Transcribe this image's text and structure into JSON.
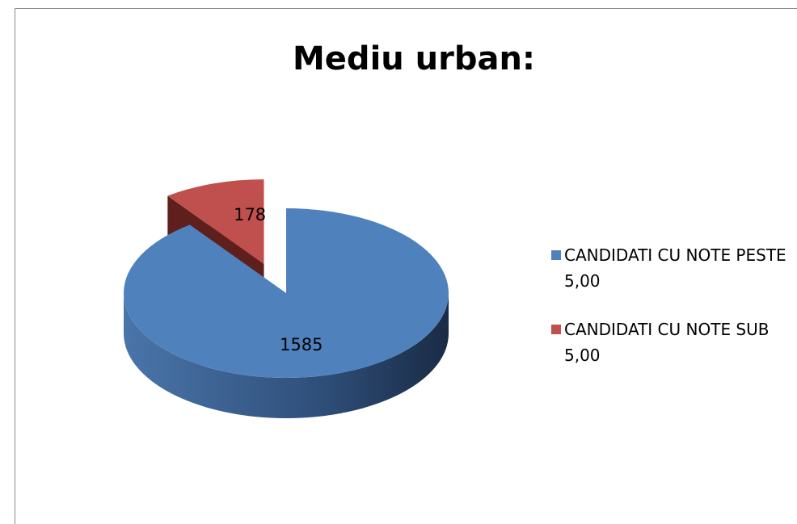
{
  "chart_data": {
    "type": "pie",
    "title": "Mediu urban:",
    "categories": [
      "CANDIDATI CU NOTE PESTE 5,00",
      "CANDIDATI CU NOTE SUB 5,00"
    ],
    "values": [
      1585,
      178
    ],
    "colors": [
      "#4f81bd",
      "#c0504d"
    ],
    "legend": "right"
  }
}
